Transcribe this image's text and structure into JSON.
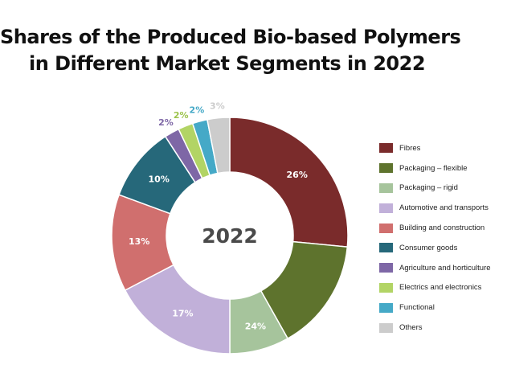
{
  "title": {
    "line1": "Shares of the Produced Bio-based Polymers",
    "line2": "in Different Market Segments in 2022"
  },
  "chart_data": {
    "type": "pie",
    "variant": "donut",
    "center_label": "2022",
    "categories": [
      "Fibres",
      "Packaging – flexible",
      "Packaging – rigid",
      "Automotive and transports",
      "Building and construction",
      "Consumer goods",
      "Agriculture and horticulture",
      "Electrics and electronics",
      "Functional",
      "Others"
    ],
    "values": [
      26,
      15,
      8,
      17,
      13,
      10,
      2,
      2,
      2,
      3
    ],
    "labels": [
      "26%",
      "",
      "",
      "17%",
      "13%",
      "10%",
      "2%",
      "2%",
      "2%",
      "3%"
    ],
    "extra_labels": [
      {
        "text": "24%",
        "anchor_slice": "Packaging – rigid"
      }
    ],
    "colors": [
      "#7a2b2b",
      "#5e732d",
      "#a6c49c",
      "#c1b0d9",
      "#d06f6e",
      "#26687a",
      "#7e67a6",
      "#b2d465",
      "#45a9c7",
      "#cccccc"
    ],
    "label_colors": [
      "#ffffff",
      "#ffffff",
      "#ffffff",
      "#ffffff",
      "#ffffff",
      "#ffffff",
      "#7e67a6",
      "#9cc34c",
      "#45a9c7",
      "#cccccc"
    ],
    "legend_position": "right",
    "start_angle": "top",
    "direction": "clockwise"
  }
}
